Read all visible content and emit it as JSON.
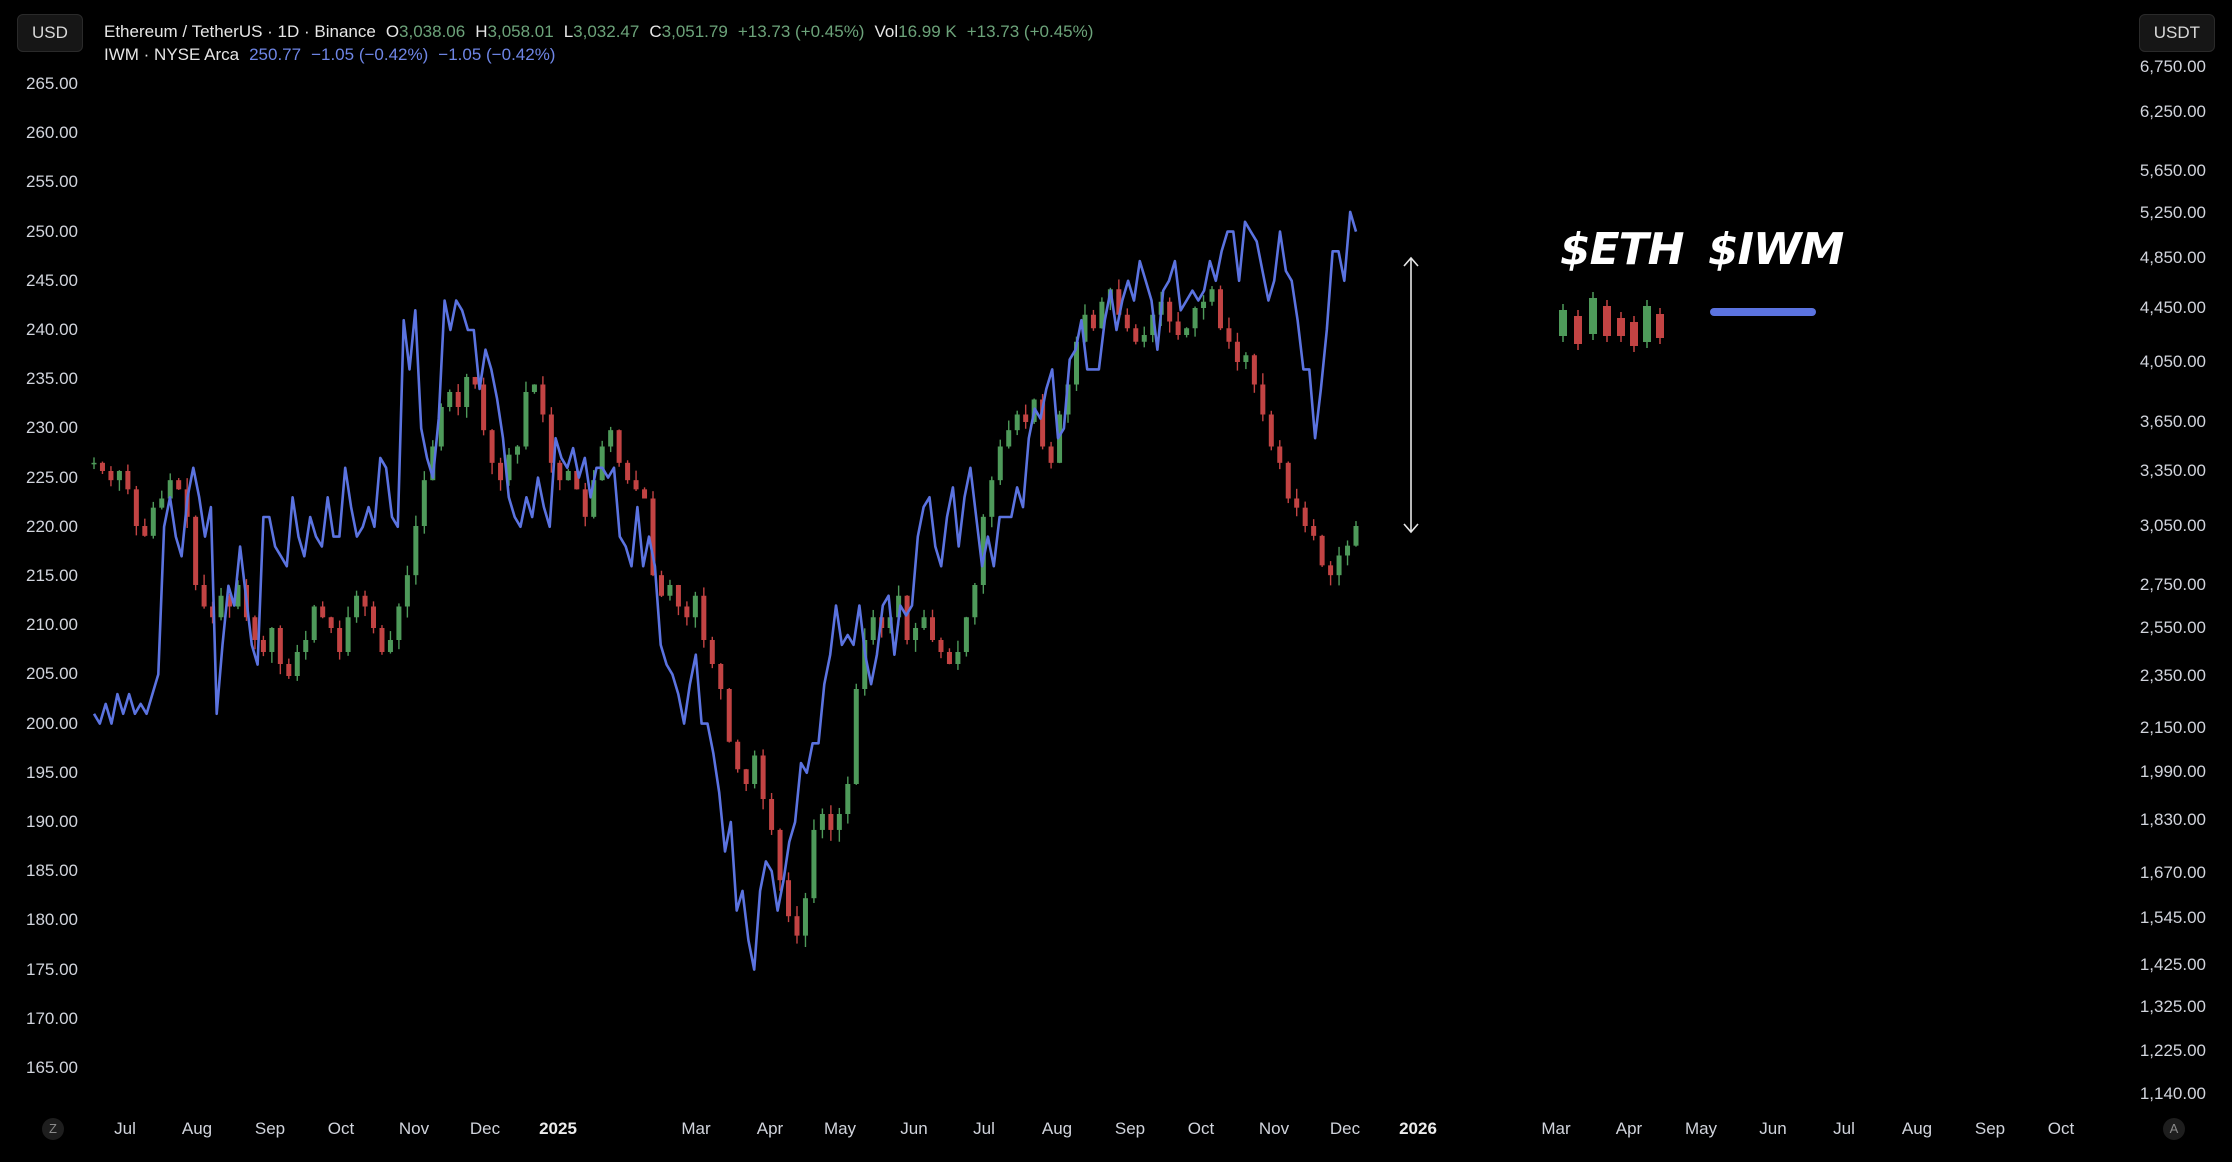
{
  "header": {
    "left_unit": "USD",
    "right_unit": "USDT",
    "eth_legend": {
      "symbol": "Ethereum / TetherUS · 1D · Binance",
      "o_label": "O",
      "o_value": "3,038.06",
      "h_label": "H",
      "h_value": "3,058.01",
      "l_label": "L",
      "l_value": "3,032.47",
      "c_label": "C",
      "c_value": "3,051.79",
      "change": "+13.73 (+0.45%)",
      "vol_label": "Vol",
      "vol_value": "16.99 K",
      "vol_change": "+13.73 (+0.45%)"
    },
    "iwm_legend": {
      "symbol": "IWM · NYSE Arca",
      "price": "250.77",
      "change1": "−1.05 (−0.42%)",
      "change2": "−1.05 (−0.42%)"
    }
  },
  "chart_data": {
    "type": "line",
    "left_axis_ticks": [
      "265.00",
      "260.00",
      "255.00",
      "250.00",
      "245.00",
      "240.00",
      "235.00",
      "230.00",
      "225.00",
      "220.00",
      "215.00",
      "210.00",
      "205.00",
      "200.00",
      "195.00",
      "190.00",
      "185.00",
      "180.00",
      "175.00",
      "170.00",
      "165.00"
    ],
    "right_axis_ticks": [
      "6,750.00",
      "6,250.00",
      "5,650.00",
      "5,250.00",
      "4,850.00",
      "4,450.00",
      "4,050.00",
      "3,650.00",
      "3,350.00",
      "3,050.00",
      "2,750.00",
      "2,550.00",
      "2,350.00",
      "2,150.00",
      "1,990.00",
      "1,830.00",
      "1,670.00",
      "1,545.00",
      "1,425.00",
      "1,325.00",
      "1,225.00",
      "1,140.00"
    ],
    "x_ticks": [
      {
        "label": "Jul",
        "bold": false
      },
      {
        "label": "Aug",
        "bold": false
      },
      {
        "label": "Sep",
        "bold": false
      },
      {
        "label": "Oct",
        "bold": false
      },
      {
        "label": "Nov",
        "bold": false
      },
      {
        "label": "Dec",
        "bold": false
      },
      {
        "label": "2025",
        "bold": true
      },
      {
        "label": "Mar",
        "bold": false
      },
      {
        "label": "Apr",
        "bold": false
      },
      {
        "label": "May",
        "bold": false
      },
      {
        "label": "Jun",
        "bold": false
      },
      {
        "label": "Jul",
        "bold": false
      },
      {
        "label": "Aug",
        "bold": false
      },
      {
        "label": "Sep",
        "bold": false
      },
      {
        "label": "Oct",
        "bold": false
      },
      {
        "label": "Nov",
        "bold": false
      },
      {
        "label": "Dec",
        "bold": false
      },
      {
        "label": "2026",
        "bold": true
      },
      {
        "label": "Mar",
        "bold": false
      },
      {
        "label": "Apr",
        "bold": false
      },
      {
        "label": "May",
        "bold": false
      },
      {
        "label": "Jun",
        "bold": false
      },
      {
        "label": "Jul",
        "bold": false
      },
      {
        "label": "Aug",
        "bold": false
      },
      {
        "label": "Sep",
        "bold": false
      },
      {
        "label": "Oct",
        "bold": false
      }
    ],
    "series": [
      {
        "name": "$IWM",
        "style": "line",
        "color": "#5b73e0",
        "values": [
          201,
          200,
          202,
          200,
          203,
          201,
          203,
          201,
          202,
          201,
          203,
          205,
          220,
          223,
          219,
          217,
          223,
          226,
          223,
          219,
          222,
          201,
          208,
          214,
          212,
          218,
          213,
          208,
          206,
          221,
          221,
          218,
          217,
          216,
          223,
          219,
          217,
          221,
          219,
          218,
          223,
          219,
          219,
          226,
          222,
          219,
          220,
          222,
          220,
          227,
          226,
          221,
          220,
          241,
          236,
          242,
          230,
          227,
          225,
          231,
          243,
          240,
          243,
          242,
          240,
          240,
          234,
          238,
          236,
          233,
          229,
          223,
          221,
          220,
          223,
          221,
          225,
          222,
          220,
          229,
          227,
          226,
          228,
          225,
          227,
          223,
          226,
          226,
          225,
          226,
          219,
          218,
          216,
          222,
          216,
          219,
          216,
          208,
          206,
          205,
          203,
          200,
          204,
          207,
          200,
          200,
          197,
          193,
          187,
          190,
          181,
          183,
          178,
          175,
          183,
          186,
          185,
          181,
          184,
          188,
          190,
          196,
          195,
          198,
          198,
          204,
          207,
          212,
          208,
          209,
          208,
          212,
          207,
          204,
          207,
          212,
          213,
          207,
          212,
          211,
          212,
          219,
          222,
          223,
          218,
          216,
          221,
          224,
          218,
          223,
          226,
          221,
          216,
          219,
          216,
          221,
          221,
          221,
          224,
          222,
          229,
          232,
          231,
          234,
          236,
          229,
          230,
          237,
          238,
          241,
          236,
          236,
          236,
          241,
          244,
          240,
          243,
          245,
          243,
          247,
          245,
          243,
          238,
          244,
          245,
          247,
          242,
          243,
          244,
          243,
          244,
          247,
          245,
          248,
          250,
          250,
          245,
          251,
          250,
          249,
          246,
          243,
          245,
          250,
          246,
          245,
          241,
          236,
          236,
          229,
          234,
          240,
          248,
          248,
          245,
          252,
          250
        ]
      },
      {
        "name": "$ETH",
        "style": "candlestick",
        "up_color": "#4e9a5a",
        "down_color": "#c24343",
        "values": [
          3400,
          3350,
          3300,
          3350,
          3250,
          3050,
          3000,
          3150,
          3200,
          3300,
          3250,
          3100,
          2750,
          2650,
          2600,
          2700,
          2650,
          2750,
          2600,
          2500,
          2450,
          2550,
          2400,
          2350,
          2450,
          2500,
          2650,
          2600,
          2550,
          2450,
          2600,
          2700,
          2650,
          2550,
          2450,
          2500,
          2650,
          2800,
          3050,
          3300,
          3500,
          3750,
          3850,
          3750,
          3950,
          3900,
          3600,
          3400,
          3300,
          3450,
          3500,
          3850,
          3900,
          3700,
          3400,
          3300,
          3350,
          3250,
          3100,
          3300,
          3500,
          3600,
          3400,
          3300,
          3250,
          3200,
          2800,
          2700,
          2750,
          2650,
          2600,
          2700,
          2500,
          2400,
          2300,
          2100,
          2000,
          1950,
          2050,
          1900,
          1800,
          1650,
          1550,
          1500,
          1600,
          1800,
          1850,
          1800,
          1850,
          1950,
          2300,
          2500,
          2600,
          2550,
          2600,
          2700,
          2500,
          2550,
          2600,
          2500,
          2450,
          2400,
          2450,
          2600,
          2750,
          3100,
          3300,
          3500,
          3600,
          3700,
          3650,
          3800,
          3500,
          3400,
          3700,
          3900,
          4200,
          4400,
          4300,
          4500,
          4600,
          4400,
          4300,
          4200,
          4250,
          4400,
          4500,
          4350,
          4250,
          4300,
          4450,
          4500,
          4600,
          4300,
          4200,
          4050,
          4100,
          3900,
          3700,
          3500,
          3400,
          3200,
          3150,
          3050,
          3000,
          2850,
          2800,
          2900,
          2950,
          3050
        ]
      }
    ],
    "annotation_labels": [
      "$ETH",
      "$IWM"
    ]
  },
  "bottom": {
    "left_circle": "Z",
    "right_circle": "A"
  }
}
